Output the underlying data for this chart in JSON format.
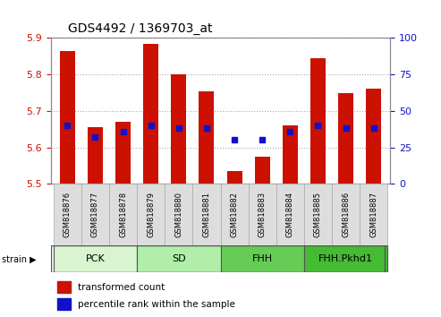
{
  "title": "GDS4492 / 1369703_at",
  "samples": [
    "GSM818876",
    "GSM818877",
    "GSM818878",
    "GSM818879",
    "GSM818880",
    "GSM818881",
    "GSM818882",
    "GSM818883",
    "GSM818884",
    "GSM818885",
    "GSM818886",
    "GSM818887"
  ],
  "transformed_counts": [
    5.865,
    5.655,
    5.67,
    5.885,
    5.8,
    5.755,
    5.535,
    5.575,
    5.66,
    5.845,
    5.75,
    5.76
  ],
  "percentile_ranks": [
    40,
    32,
    36,
    40,
    38,
    38,
    30,
    30,
    36,
    40,
    38,
    38
  ],
  "groups": [
    {
      "label": "PCK",
      "start": 0,
      "end": 2,
      "color": "#d8f5d0"
    },
    {
      "label": "SD",
      "start": 3,
      "end": 5,
      "color": "#b0eeaa"
    },
    {
      "label": "FHH",
      "start": 6,
      "end": 8,
      "color": "#66cc55"
    },
    {
      "label": "FHH.Pkhd1",
      "start": 9,
      "end": 11,
      "color": "#44bb33"
    }
  ],
  "ymin": 5.5,
  "ymax": 5.9,
  "y2min": 0,
  "y2max": 100,
  "bar_color": "#cc1100",
  "dot_color": "#1111cc",
  "bar_width": 0.55,
  "grid_color": "#aaaaaa",
  "bg_color": "#ffffff",
  "tick_label_color_left": "#cc1100",
  "tick_label_color_right": "#1111cc",
  "cell_color": "#dddddd",
  "legend_red": "transformed count",
  "legend_blue": "percentile rank within the sample",
  "strain_label": "strain"
}
